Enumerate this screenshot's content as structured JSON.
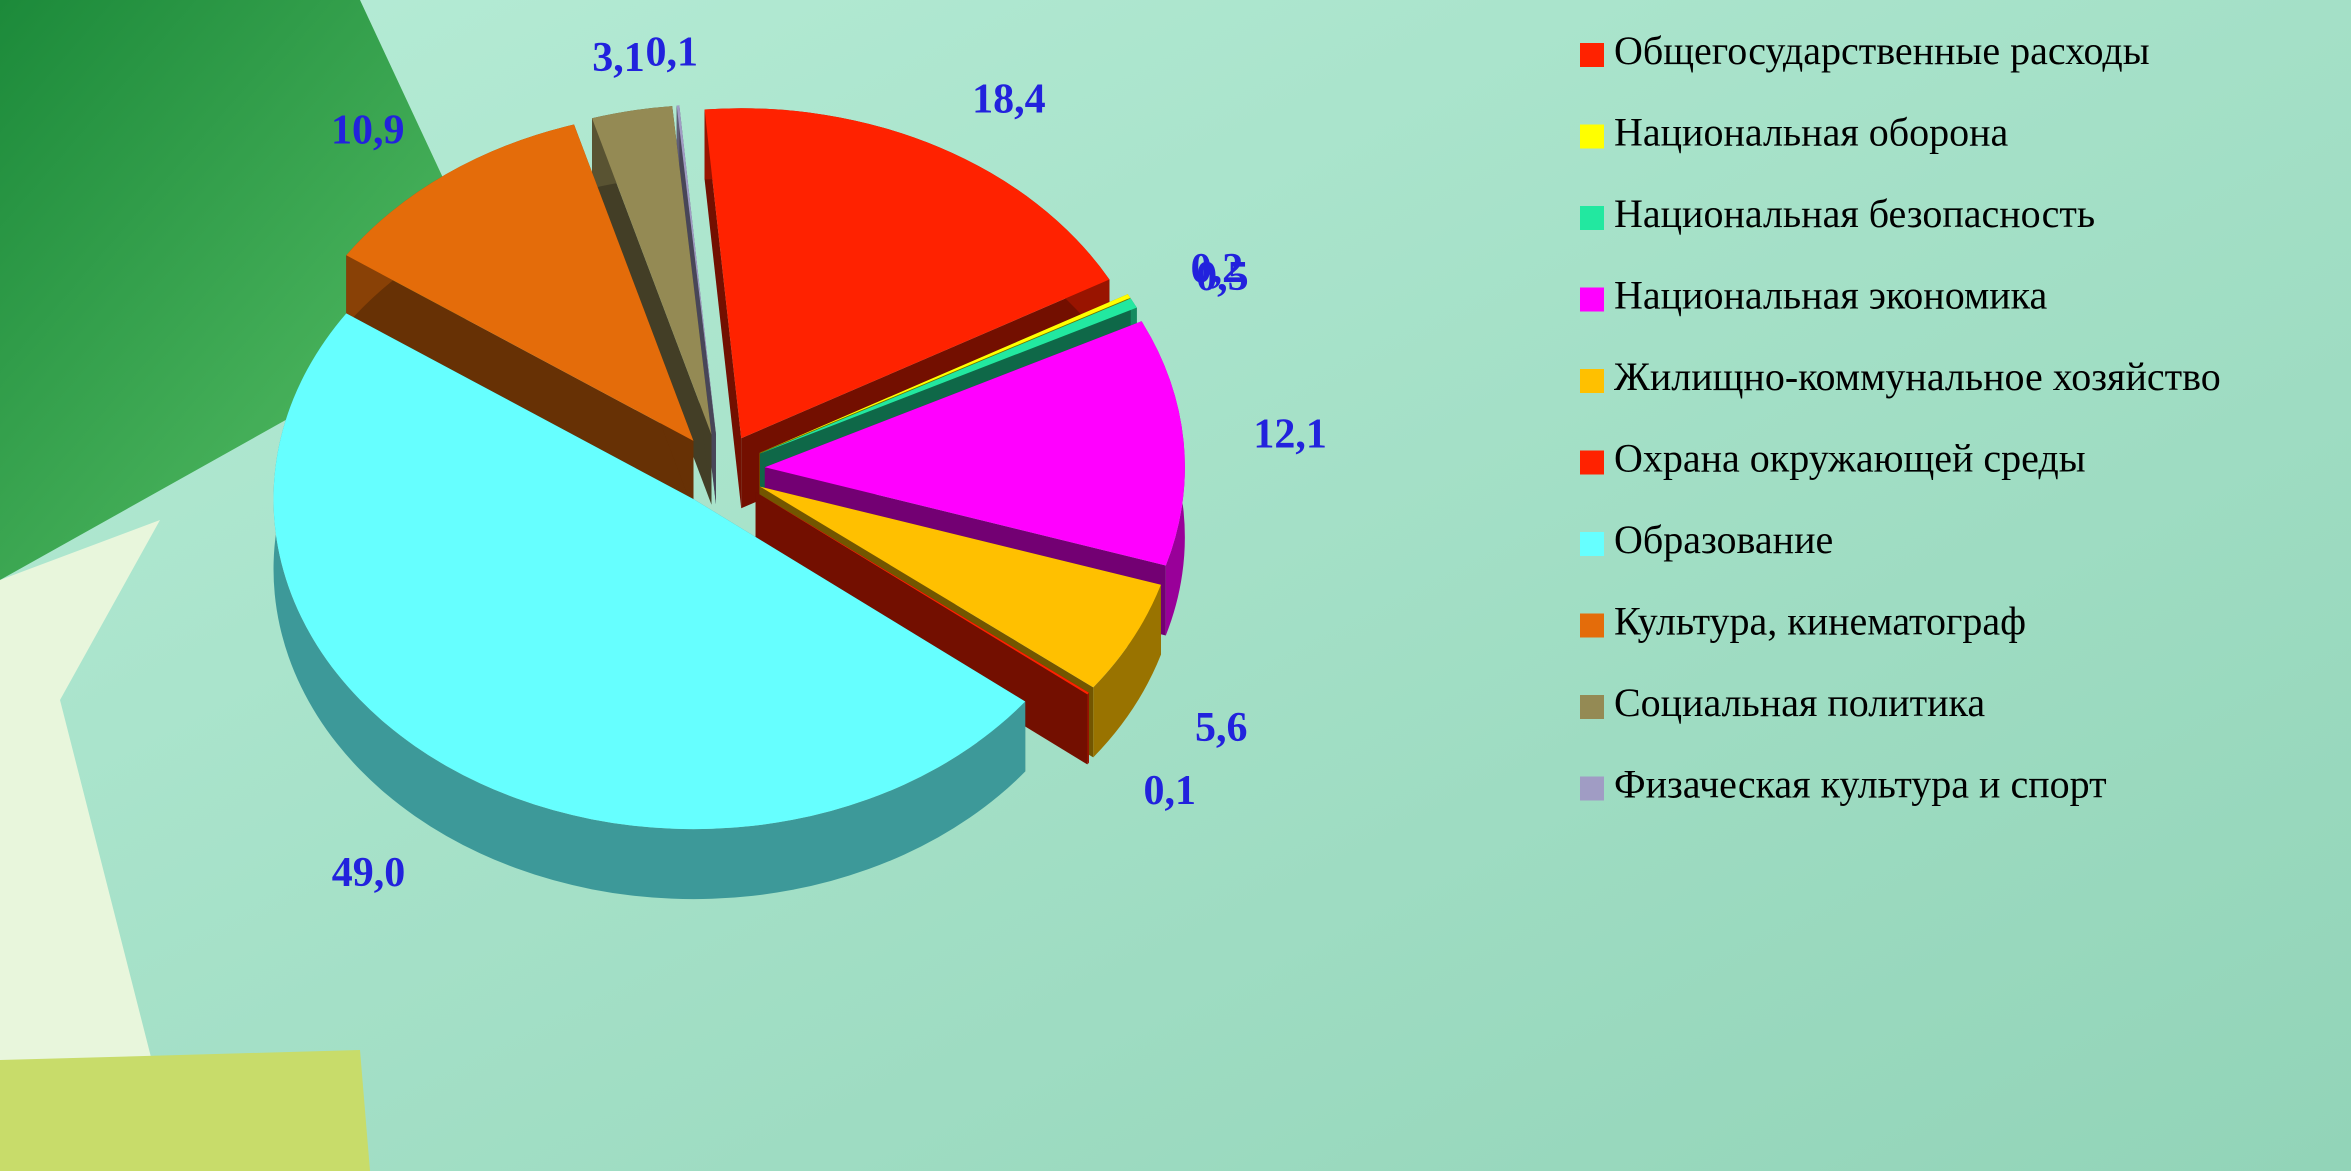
{
  "chart_data": {
    "type": "pie",
    "categories": [
      "Общегосударственные расходы",
      "Национальная оборона",
      "Национальная безопасность",
      "Национальная экономика",
      "Жилищно-коммунальное хозяйство",
      "Охрана окружающей среды",
      "Образование",
      "Культура, кинематограф",
      "Социальная политика",
      "Физаческая культура и спорт"
    ],
    "values": [
      18.4,
      0.2,
      0.5,
      12.1,
      5.6,
      0.1,
      49.0,
      10.9,
      3.1,
      0.1
    ],
    "value_labels": [
      "18,4",
      "0,2",
      "0,5",
      "12,1",
      "5,6",
      "0,1",
      "49,0",
      "10,9",
      "3,1",
      "0,1"
    ],
    "colors": [
      "#ff2200",
      "#ffff00",
      "#22e8a0",
      "#ff00ff",
      "#ffc000",
      "#ff2200",
      "#66ffff",
      "#e46c0a",
      "#948a54",
      "#a09cc4"
    ],
    "legend": "right"
  }
}
